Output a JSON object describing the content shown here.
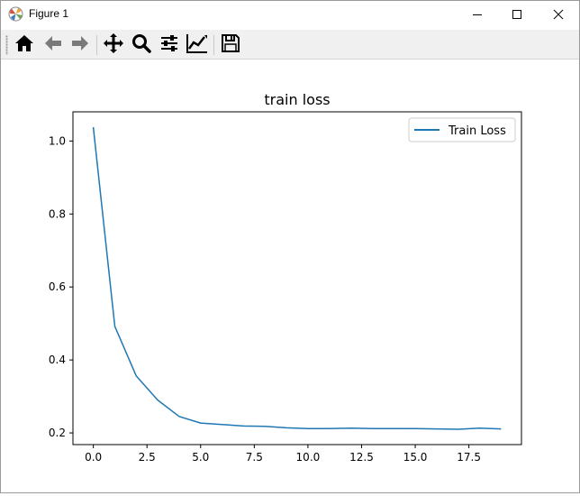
{
  "window": {
    "title": "Figure 1",
    "controls": {
      "minimize": "minimize",
      "maximize": "maximize",
      "close": "close"
    }
  },
  "toolbar": {
    "buttons": [
      {
        "name": "home",
        "icon": "home-icon"
      },
      {
        "name": "back",
        "icon": "arrow-left-icon"
      },
      {
        "name": "forward",
        "icon": "arrow-right-icon"
      },
      {
        "name": "pan",
        "icon": "move-icon"
      },
      {
        "name": "zoom",
        "icon": "magnifier-icon"
      },
      {
        "name": "configure-subplots",
        "icon": "sliders-icon"
      },
      {
        "name": "edit-axis",
        "icon": "line-chart-icon"
      },
      {
        "name": "save",
        "icon": "floppy-disk-icon"
      }
    ]
  },
  "chart_data": {
    "type": "line",
    "title": "train loss",
    "xlabel": "",
    "ylabel": "",
    "xlim": [
      -0.95,
      19.95
    ],
    "ylim": [
      0.168,
      1.08
    ],
    "xticks": [
      0.0,
      2.5,
      5.0,
      7.5,
      10.0,
      12.5,
      15.0,
      17.5
    ],
    "xtick_labels": [
      "0.0",
      "2.5",
      "5.0",
      "7.5",
      "10.0",
      "12.5",
      "15.0",
      "17.5"
    ],
    "yticks": [
      0.2,
      0.4,
      0.6,
      0.8,
      1.0
    ],
    "ytick_labels": [
      "0.2",
      "0.4",
      "0.6",
      "0.8",
      "1.0"
    ],
    "grid": false,
    "legend": "top-right",
    "series": [
      {
        "name": "Train Loss",
        "color": "#1f77b4",
        "x": [
          0,
          1,
          2,
          3,
          4,
          5,
          6,
          7,
          8,
          9,
          10,
          11,
          12,
          13,
          14,
          15,
          16,
          17,
          18,
          19
        ],
        "y": [
          1.038,
          0.492,
          0.356,
          0.29,
          0.245,
          0.227,
          0.223,
          0.219,
          0.218,
          0.214,
          0.212,
          0.212,
          0.213,
          0.212,
          0.212,
          0.212,
          0.211,
          0.21,
          0.213,
          0.211
        ]
      }
    ]
  }
}
